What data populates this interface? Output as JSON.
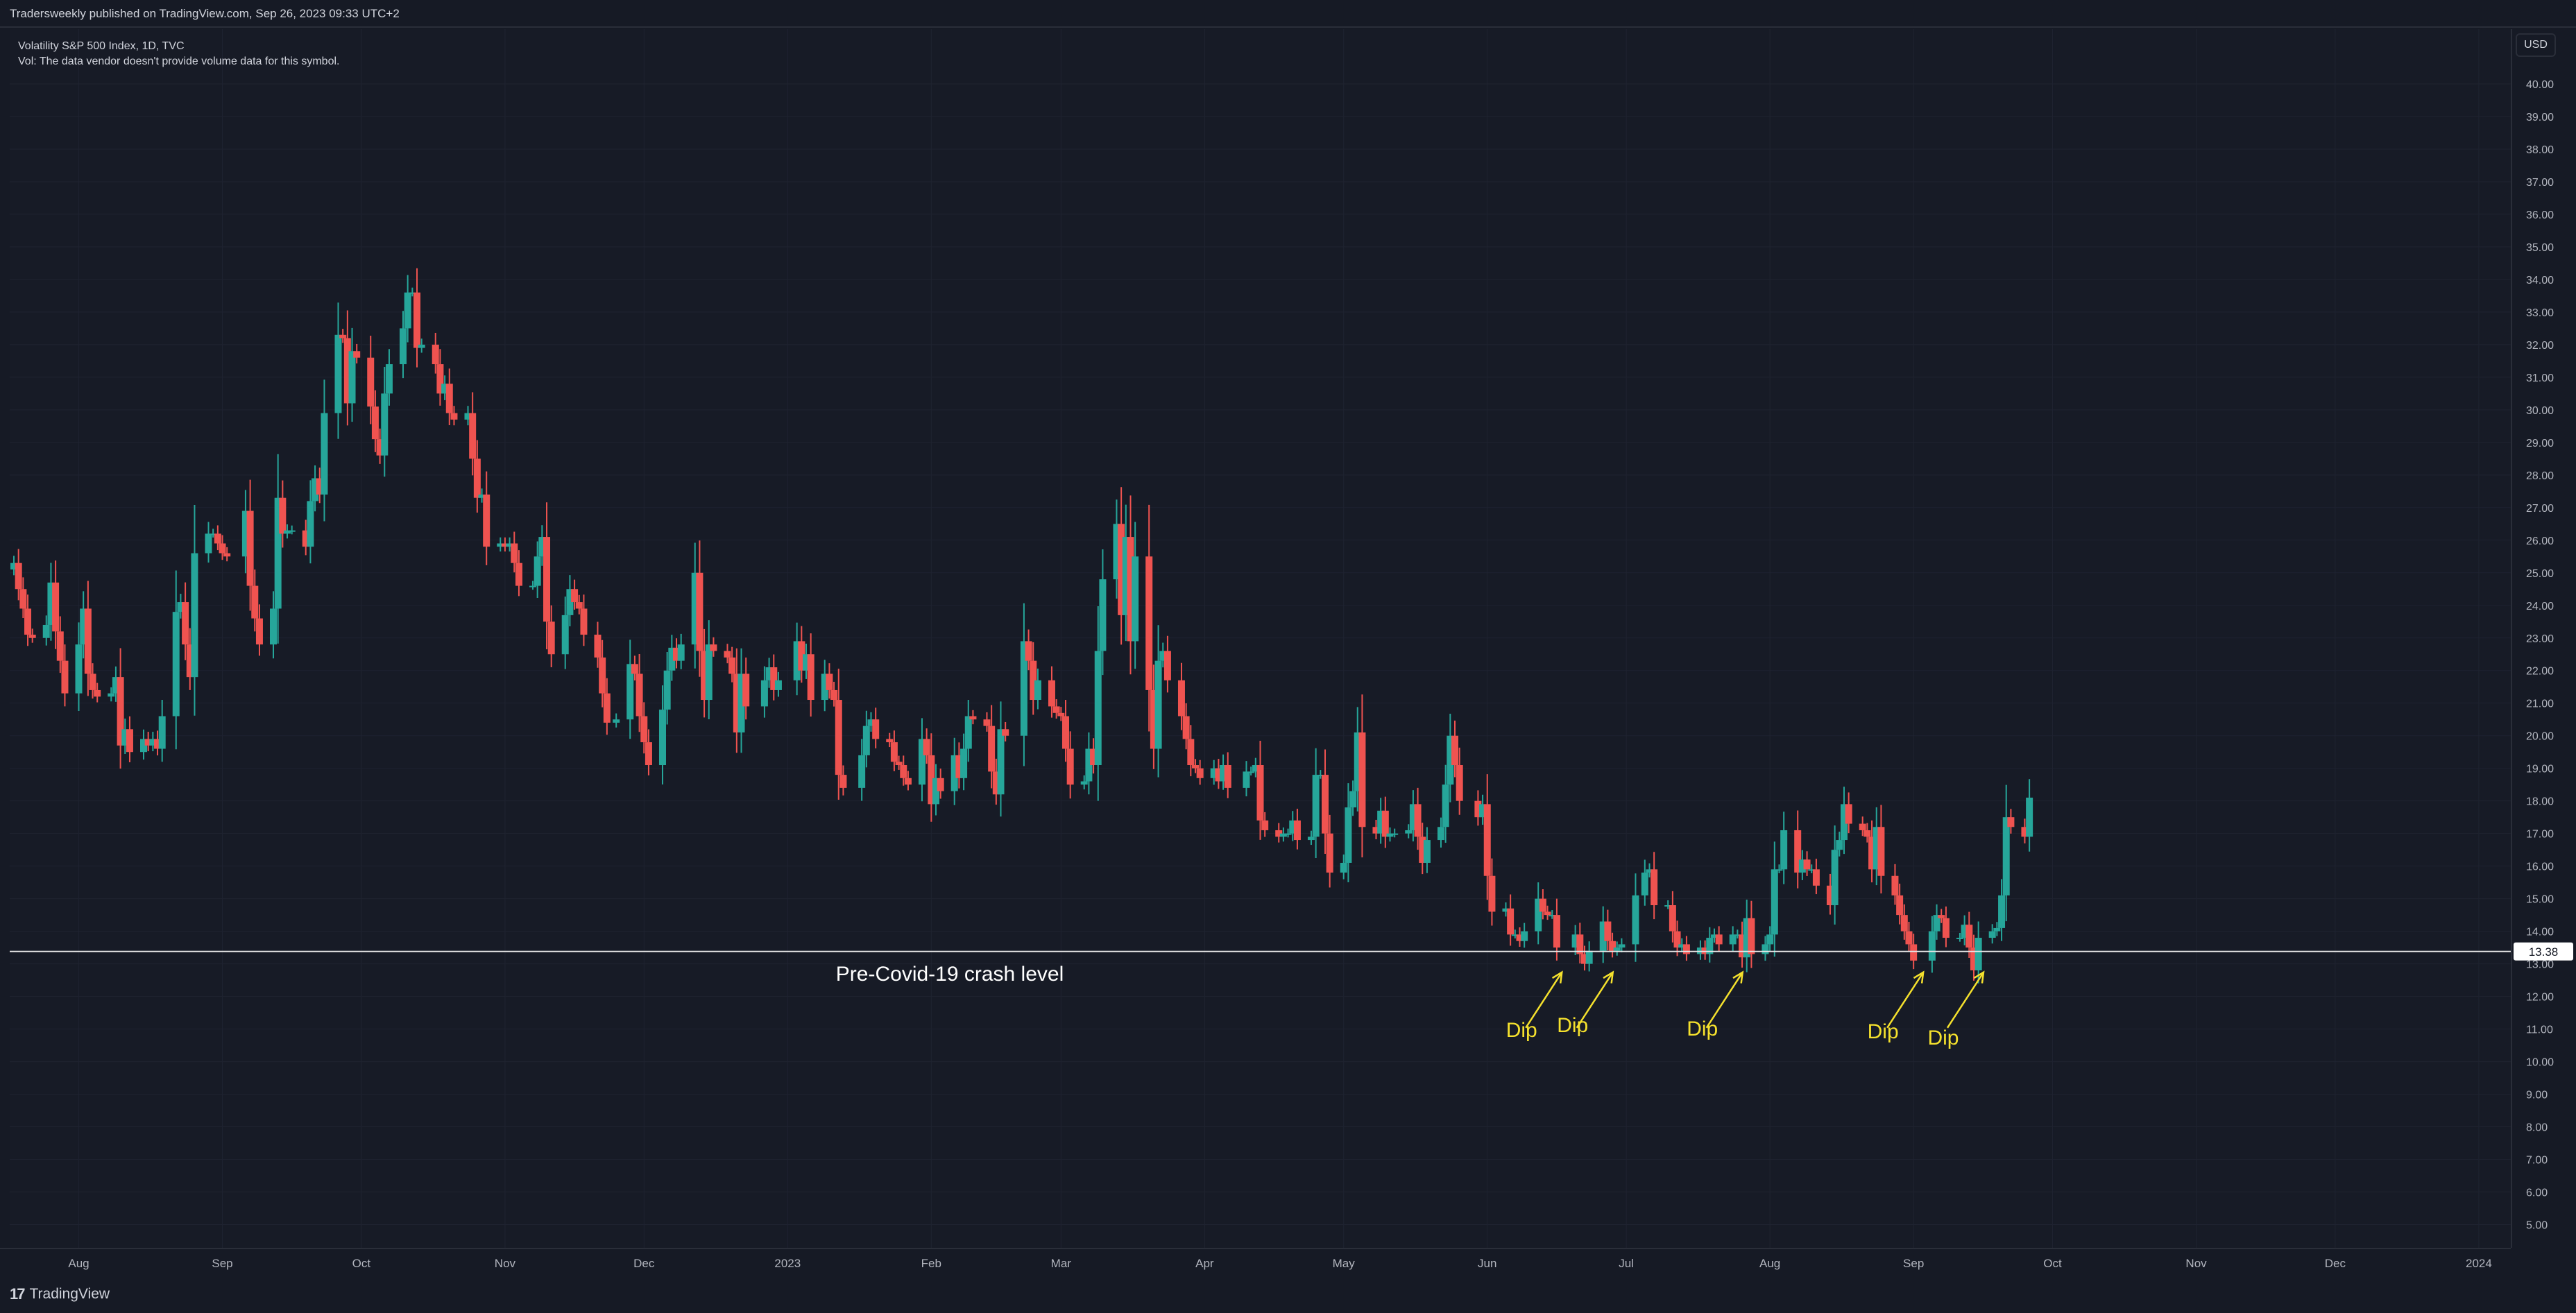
{
  "header": {
    "published": "Tradersweekly published on TradingView.com, Sep 26, 2023 09:33 UTC+2"
  },
  "legend": {
    "symbol": "Volatility S&P 500 Index, 1D, TVC",
    "volume_note": "Vol: The data vendor doesn't provide volume data for this symbol."
  },
  "price_scale": {
    "currency": "USD",
    "current_price_label": "13.38"
  },
  "footer": {
    "brand": "TradingView",
    "logo_glyph": "17"
  },
  "colors": {
    "up": "#26a69a",
    "down": "#ef5350",
    "background": "#171b26",
    "annotation": "#f5e12d",
    "level_line": "#e6e6e6"
  },
  "chart_data": {
    "type": "candlestick",
    "title": "Volatility S&P 500 Index, 1D, TVC",
    "ylim": [
      4.5,
      41
    ],
    "y_ticks": [
      "5.00",
      "6.00",
      "7.00",
      "8.00",
      "9.00",
      "10.00",
      "11.00",
      "12.00",
      "13.00",
      "14.00",
      "15.00",
      "16.00",
      "17.00",
      "18.00",
      "19.00",
      "20.00",
      "21.00",
      "22.00",
      "23.00",
      "24.00",
      "25.00",
      "26.00",
      "27.00",
      "28.00",
      "29.00",
      "30.00",
      "31.00",
      "32.00",
      "33.00",
      "34.00",
      "35.00",
      "36.00",
      "37.00",
      "38.00",
      "39.00",
      "40.00"
    ],
    "x_tick_labels": [
      "Aug",
      "Sep",
      "Oct",
      "Nov",
      "Dec",
      "2023",
      "Feb",
      "Mar",
      "Apr",
      "May",
      "Jun",
      "Jul",
      "Aug",
      "Sep",
      "Oct",
      "Nov",
      "Dec",
      "2024"
    ],
    "x_tick_dates": [
      "2022-08-01",
      "2022-09-01",
      "2022-10-01",
      "2022-11-01",
      "2022-12-01",
      "2023-01-01",
      "2023-02-01",
      "2023-03-01",
      "2023-04-01",
      "2023-05-01",
      "2023-06-01",
      "2023-07-01",
      "2023-08-01",
      "2023-09-01",
      "2023-10-01",
      "2023-11-01",
      "2023-12-01",
      "2024-01-01"
    ],
    "x_range": [
      "2022-07-18",
      "2024-01-07"
    ],
    "horizontal_level": {
      "price": 13.38,
      "label": "Pre-Covid-19 crash level"
    },
    "dip_annotations": [
      {
        "date": "2023-06-15",
        "label": "Dip"
      },
      {
        "date": "2023-06-26",
        "label": "Dip"
      },
      {
        "date": "2023-07-24",
        "label": "Dip"
      },
      {
        "date": "2023-09-01",
        "label": "Dip"
      },
      {
        "date": "2023-09-14",
        "label": "Dip"
      }
    ],
    "closes": [
      [
        "2022-07-18",
        25.3
      ],
      [
        "2022-07-19",
        24.5
      ],
      [
        "2022-07-20",
        23.9
      ],
      [
        "2022-07-21",
        23.1
      ],
      [
        "2022-07-22",
        23.0
      ],
      [
        "2022-07-25",
        23.4
      ],
      [
        "2022-07-26",
        24.7
      ],
      [
        "2022-07-27",
        23.2
      ],
      [
        "2022-07-28",
        22.3
      ],
      [
        "2022-07-29",
        21.3
      ],
      [
        "2022-08-01",
        22.8
      ],
      [
        "2022-08-02",
        23.9
      ],
      [
        "2022-08-03",
        21.9
      ],
      [
        "2022-08-04",
        21.4
      ],
      [
        "2022-08-05",
        21.2
      ],
      [
        "2022-08-08",
        21.3
      ],
      [
        "2022-08-09",
        21.8
      ],
      [
        "2022-08-10",
        19.7
      ],
      [
        "2022-08-11",
        20.2
      ],
      [
        "2022-08-12",
        19.5
      ],
      [
        "2022-08-15",
        19.9
      ],
      [
        "2022-08-16",
        19.7
      ],
      [
        "2022-08-17",
        19.9
      ],
      [
        "2022-08-18",
        19.6
      ],
      [
        "2022-08-19",
        20.6
      ],
      [
        "2022-08-22",
        23.8
      ],
      [
        "2022-08-23",
        24.1
      ],
      [
        "2022-08-24",
        22.8
      ],
      [
        "2022-08-25",
        21.8
      ],
      [
        "2022-08-26",
        25.6
      ],
      [
        "2022-08-29",
        26.2
      ],
      [
        "2022-08-30",
        26.2
      ],
      [
        "2022-08-31",
        25.9
      ],
      [
        "2022-09-01",
        25.6
      ],
      [
        "2022-09-02",
        25.5
      ],
      [
        "2022-09-06",
        26.9
      ],
      [
        "2022-09-07",
        24.6
      ],
      [
        "2022-09-08",
        23.6
      ],
      [
        "2022-09-09",
        22.8
      ],
      [
        "2022-09-12",
        23.9
      ],
      [
        "2022-09-13",
        27.3
      ],
      [
        "2022-09-14",
        26.2
      ],
      [
        "2022-09-15",
        26.3
      ],
      [
        "2022-09-16",
        26.3
      ],
      [
        "2022-09-19",
        25.8
      ],
      [
        "2022-09-20",
        27.2
      ],
      [
        "2022-09-21",
        27.9
      ],
      [
        "2022-09-22",
        27.4
      ],
      [
        "2022-09-23",
        29.9
      ],
      [
        "2022-09-26",
        32.3
      ],
      [
        "2022-09-27",
        32.2
      ],
      [
        "2022-09-28",
        30.2
      ],
      [
        "2022-09-29",
        31.8
      ],
      [
        "2022-09-30",
        31.6
      ],
      [
        "2022-10-03",
        30.1
      ],
      [
        "2022-10-04",
        29.1
      ],
      [
        "2022-10-05",
        28.6
      ],
      [
        "2022-10-06",
        30.5
      ],
      [
        "2022-10-07",
        31.4
      ],
      [
        "2022-10-10",
        32.5
      ],
      [
        "2022-10-11",
        33.6
      ],
      [
        "2022-10-12",
        33.6
      ],
      [
        "2022-10-13",
        31.9
      ],
      [
        "2022-10-14",
        32.0
      ],
      [
        "2022-10-17",
        31.4
      ],
      [
        "2022-10-18",
        30.5
      ],
      [
        "2022-10-19",
        30.8
      ],
      [
        "2022-10-20",
        29.9
      ],
      [
        "2022-10-21",
        29.7
      ],
      [
        "2022-10-24",
        29.9
      ],
      [
        "2022-10-25",
        28.5
      ],
      [
        "2022-10-26",
        27.3
      ],
      [
        "2022-10-27",
        27.4
      ],
      [
        "2022-10-28",
        25.8
      ],
      [
        "2022-10-31",
        25.9
      ],
      [
        "2022-11-01",
        25.8
      ],
      [
        "2022-11-02",
        25.9
      ],
      [
        "2022-11-03",
        25.3
      ],
      [
        "2022-11-04",
        24.6
      ],
      [
        "2022-11-07",
        24.6
      ],
      [
        "2022-11-08",
        25.5
      ],
      [
        "2022-11-09",
        26.1
      ],
      [
        "2022-11-10",
        23.5
      ],
      [
        "2022-11-11",
        22.5
      ],
      [
        "2022-11-14",
        23.7
      ],
      [
        "2022-11-15",
        24.5
      ],
      [
        "2022-11-16",
        24.1
      ],
      [
        "2022-11-17",
        23.9
      ],
      [
        "2022-11-18",
        23.1
      ],
      [
        "2022-11-21",
        22.4
      ],
      [
        "2022-11-22",
        21.3
      ],
      [
        "2022-11-23",
        20.4
      ],
      [
        "2022-11-25",
        20.5
      ],
      [
        "2022-11-28",
        22.2
      ],
      [
        "2022-11-29",
        21.9
      ],
      [
        "2022-11-30",
        20.6
      ],
      [
        "2022-12-01",
        19.8
      ],
      [
        "2022-12-02",
        19.1
      ],
      [
        "2022-12-05",
        20.8
      ],
      [
        "2022-12-06",
        22.0
      ],
      [
        "2022-12-07",
        22.7
      ],
      [
        "2022-12-08",
        22.3
      ],
      [
        "2022-12-09",
        22.8
      ],
      [
        "2022-12-12",
        25.0
      ],
      [
        "2022-12-13",
        22.6
      ],
      [
        "2022-12-14",
        21.1
      ],
      [
        "2022-12-15",
        22.8
      ],
      [
        "2022-12-16",
        22.6
      ],
      [
        "2022-12-19",
        22.4
      ],
      [
        "2022-12-20",
        21.9
      ],
      [
        "2022-12-21",
        20.1
      ],
      [
        "2022-12-22",
        21.9
      ],
      [
        "2022-12-23",
        20.9
      ],
      [
        "2022-12-27",
        21.7
      ],
      [
        "2022-12-28",
        22.1
      ],
      [
        "2022-12-29",
        21.4
      ],
      [
        "2022-12-30",
        21.7
      ],
      [
        "2023-01-03",
        22.9
      ],
      [
        "2023-01-04",
        22.0
      ],
      [
        "2023-01-05",
        22.5
      ],
      [
        "2023-01-06",
        21.1
      ],
      [
        "2023-01-09",
        21.9
      ],
      [
        "2023-01-10",
        21.4
      ],
      [
        "2023-01-11",
        21.1
      ],
      [
        "2023-01-12",
        18.8
      ],
      [
        "2023-01-13",
        18.4
      ],
      [
        "2023-01-17",
        19.4
      ],
      [
        "2023-01-18",
        20.3
      ],
      [
        "2023-01-19",
        20.5
      ],
      [
        "2023-01-20",
        19.9
      ],
      [
        "2023-01-23",
        19.8
      ],
      [
        "2023-01-24",
        19.2
      ],
      [
        "2023-01-25",
        19.1
      ],
      [
        "2023-01-26",
        18.7
      ],
      [
        "2023-01-27",
        18.5
      ],
      [
        "2023-01-30",
        19.9
      ],
      [
        "2023-01-31",
        19.4
      ],
      [
        "2023-02-01",
        17.9
      ],
      [
        "2023-02-02",
        18.7
      ],
      [
        "2023-02-03",
        18.3
      ],
      [
        "2023-02-06",
        19.4
      ],
      [
        "2023-02-07",
        18.7
      ],
      [
        "2023-02-08",
        19.6
      ],
      [
        "2023-02-09",
        20.6
      ],
      [
        "2023-02-10",
        20.5
      ],
      [
        "2023-02-13",
        20.3
      ],
      [
        "2023-02-14",
        18.9
      ],
      [
        "2023-02-15",
        18.2
      ],
      [
        "2023-02-16",
        20.2
      ],
      [
        "2023-02-17",
        20.0
      ],
      [
        "2023-02-21",
        22.9
      ],
      [
        "2023-02-22",
        22.3
      ],
      [
        "2023-02-23",
        21.1
      ],
      [
        "2023-02-24",
        21.7
      ],
      [
        "2023-02-27",
        20.9
      ],
      [
        "2023-02-28",
        20.7
      ],
      [
        "2023-03-01",
        20.6
      ],
      [
        "2023-03-02",
        19.6
      ],
      [
        "2023-03-03",
        18.5
      ],
      [
        "2023-03-06",
        18.6
      ],
      [
        "2023-03-07",
        19.6
      ],
      [
        "2023-03-08",
        19.1
      ],
      [
        "2023-03-09",
        22.6
      ],
      [
        "2023-03-10",
        24.8
      ],
      [
        "2023-03-13",
        26.5
      ],
      [
        "2023-03-14",
        23.7
      ],
      [
        "2023-03-15",
        26.1
      ],
      [
        "2023-03-16",
        22.9
      ],
      [
        "2023-03-17",
        25.5
      ],
      [
        "2023-03-20",
        21.4
      ],
      [
        "2023-03-21",
        19.6
      ],
      [
        "2023-03-22",
        22.3
      ],
      [
        "2023-03-23",
        22.6
      ],
      [
        "2023-03-24",
        21.7
      ],
      [
        "2023-03-27",
        20.6
      ],
      [
        "2023-03-28",
        19.9
      ],
      [
        "2023-03-29",
        19.1
      ],
      [
        "2023-03-30",
        19.0
      ],
      [
        "2023-03-31",
        18.7
      ],
      [
        "2023-04-03",
        19.0
      ],
      [
        "2023-04-04",
        18.6
      ],
      [
        "2023-04-05",
        19.1
      ],
      [
        "2023-04-06",
        18.4
      ],
      [
        "2023-04-10",
        18.9
      ],
      [
        "2023-04-11",
        18.9
      ],
      [
        "2023-04-12",
        19.1
      ],
      [
        "2023-04-13",
        17.4
      ],
      [
        "2023-04-14",
        17.1
      ],
      [
        "2023-04-17",
        16.9
      ],
      [
        "2023-04-18",
        17.0
      ],
      [
        "2023-04-19",
        17.0
      ],
      [
        "2023-04-20",
        17.4
      ],
      [
        "2023-04-21",
        16.8
      ],
      [
        "2023-04-24",
        16.9
      ],
      [
        "2023-04-25",
        18.8
      ],
      [
        "2023-04-26",
        18.8
      ],
      [
        "2023-04-27",
        17.0
      ],
      [
        "2023-04-28",
        15.8
      ],
      [
        "2023-05-01",
        16.1
      ],
      [
        "2023-05-02",
        17.8
      ],
      [
        "2023-05-03",
        18.3
      ],
      [
        "2023-05-04",
        20.1
      ],
      [
        "2023-05-05",
        17.2
      ],
      [
        "2023-05-08",
        17.0
      ],
      [
        "2023-05-09",
        17.7
      ],
      [
        "2023-05-10",
        16.9
      ],
      [
        "2023-05-11",
        17.0
      ],
      [
        "2023-05-12",
        17.0
      ],
      [
        "2023-05-15",
        17.1
      ],
      [
        "2023-05-16",
        17.9
      ],
      [
        "2023-05-17",
        16.9
      ],
      [
        "2023-05-18",
        16.1
      ],
      [
        "2023-05-19",
        16.8
      ],
      [
        "2023-05-22",
        17.2
      ],
      [
        "2023-05-23",
        18.5
      ],
      [
        "2023-05-24",
        20.0
      ],
      [
        "2023-05-25",
        19.1
      ],
      [
        "2023-05-26",
        18.0
      ],
      [
        "2023-05-30",
        17.5
      ],
      [
        "2023-05-31",
        17.9
      ],
      [
        "2023-06-01",
        15.7
      ],
      [
        "2023-06-02",
        14.6
      ],
      [
        "2023-06-05",
        14.7
      ],
      [
        "2023-06-06",
        13.9
      ],
      [
        "2023-06-07",
        13.9
      ],
      [
        "2023-06-08",
        13.7
      ],
      [
        "2023-06-09",
        14.0
      ],
      [
        "2023-06-12",
        15.0
      ],
      [
        "2023-06-13",
        14.6
      ],
      [
        "2023-06-14",
        14.5
      ],
      [
        "2023-06-15",
        14.5
      ],
      [
        "2023-06-16",
        13.5
      ],
      [
        "2023-06-20",
        13.9
      ],
      [
        "2023-06-21",
        13.3
      ],
      [
        "2023-06-22",
        13.0
      ],
      [
        "2023-06-23",
        13.4
      ],
      [
        "2023-06-26",
        14.3
      ],
      [
        "2023-06-27",
        13.7
      ],
      [
        "2023-06-28",
        13.4
      ],
      [
        "2023-06-29",
        13.5
      ],
      [
        "2023-06-30",
        13.6
      ],
      [
        "2023-07-03",
        15.1
      ],
      [
        "2023-07-05",
        15.8
      ],
      [
        "2023-07-06",
        15.9
      ],
      [
        "2023-07-07",
        14.8
      ],
      [
        "2023-07-10",
        14.8
      ],
      [
        "2023-07-11",
        14.0
      ],
      [
        "2023-07-12",
        13.5
      ],
      [
        "2023-07-13",
        13.6
      ],
      [
        "2023-07-14",
        13.3
      ],
      [
        "2023-07-17",
        13.5
      ],
      [
        "2023-07-18",
        13.3
      ],
      [
        "2023-07-19",
        13.8
      ],
      [
        "2023-07-20",
        13.9
      ],
      [
        "2023-07-21",
        13.6
      ],
      [
        "2023-07-24",
        13.9
      ],
      [
        "2023-07-25",
        13.9
      ],
      [
        "2023-07-26",
        13.2
      ],
      [
        "2023-07-27",
        14.4
      ],
      [
        "2023-07-28",
        13.3
      ],
      [
        "2023-07-31",
        13.6
      ],
      [
        "2023-08-01",
        13.9
      ],
      [
        "2023-08-02",
        15.9
      ],
      [
        "2023-08-03",
        15.9
      ],
      [
        "2023-08-04",
        17.1
      ],
      [
        "2023-08-07",
        15.8
      ],
      [
        "2023-08-08",
        16.2
      ],
      [
        "2023-08-09",
        15.9
      ],
      [
        "2023-08-10",
        15.9
      ],
      [
        "2023-08-11",
        15.4
      ],
      [
        "2023-08-14",
        14.8
      ],
      [
        "2023-08-15",
        16.5
      ],
      [
        "2023-08-16",
        16.8
      ],
      [
        "2023-08-17",
        17.9
      ],
      [
        "2023-08-18",
        17.3
      ],
      [
        "2023-08-21",
        17.1
      ],
      [
        "2023-08-22",
        16.9
      ],
      [
        "2023-08-23",
        15.9
      ],
      [
        "2023-08-24",
        17.2
      ],
      [
        "2023-08-25",
        15.7
      ],
      [
        "2023-08-28",
        15.1
      ],
      [
        "2023-08-29",
        14.5
      ],
      [
        "2023-08-30",
        14.0
      ],
      [
        "2023-08-31",
        13.6
      ],
      [
        "2023-09-01",
        13.1
      ],
      [
        "2023-09-05",
        14.0
      ],
      [
        "2023-09-06",
        14.5
      ],
      [
        "2023-09-07",
        14.4
      ],
      [
        "2023-09-08",
        13.8
      ],
      [
        "2023-09-11",
        13.8
      ],
      [
        "2023-09-12",
        14.2
      ],
      [
        "2023-09-13",
        13.5
      ],
      [
        "2023-09-14",
        12.8
      ],
      [
        "2023-09-15",
        13.8
      ],
      [
        "2023-09-18",
        14.0
      ],
      [
        "2023-09-19",
        14.1
      ],
      [
        "2023-09-20",
        15.1
      ],
      [
        "2023-09-21",
        17.5
      ],
      [
        "2023-09-22",
        17.2
      ],
      [
        "2023-09-25",
        16.9
      ],
      [
        "2023-09-26",
        18.1
      ]
    ]
  }
}
